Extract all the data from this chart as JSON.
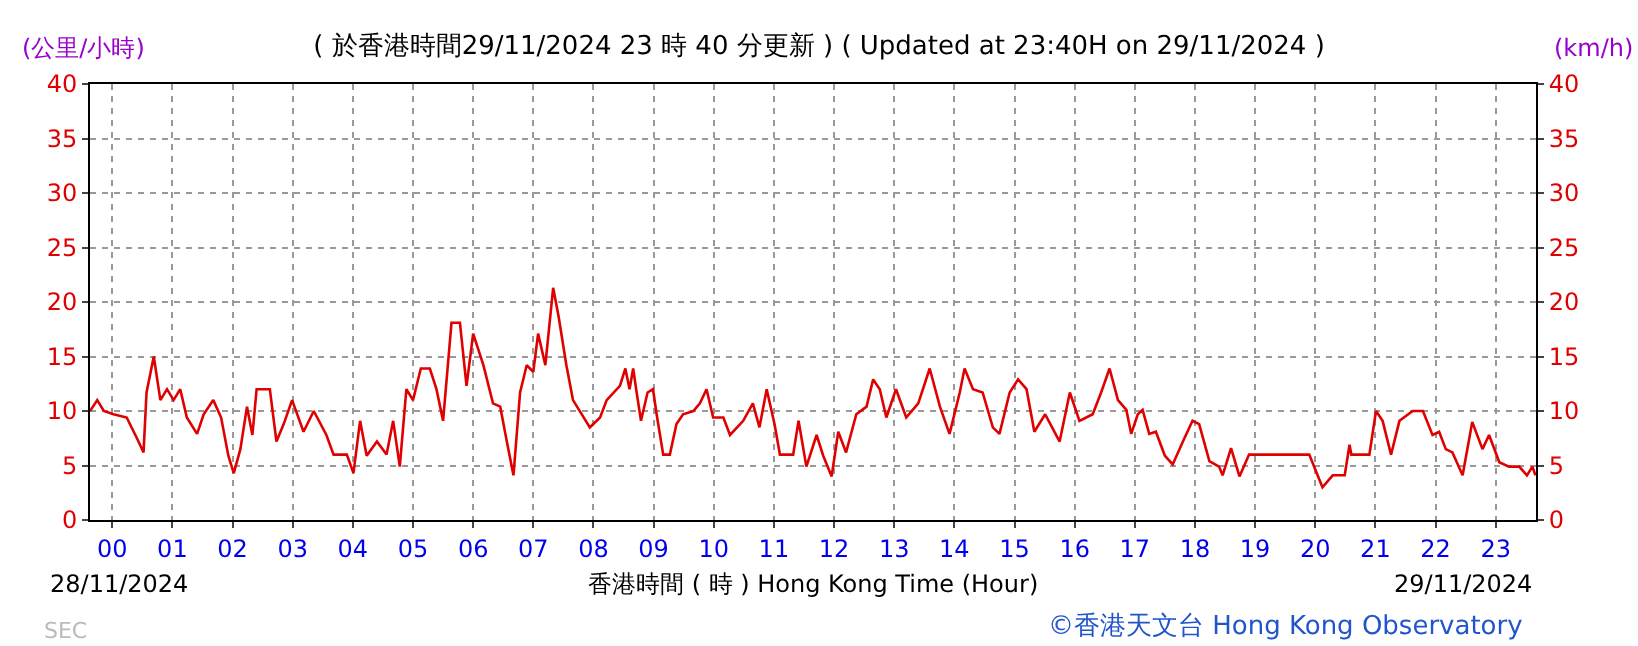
{
  "chart_data": {
    "type": "line",
    "title": "( 於香港時間29/11/2024 23 時 40 分更新 ) ( Updated at 23:40H on 29/11/2024 )",
    "xlabel": "香港時間 ( 時 ) Hong Kong Time (Hour)",
    "ylabel": "(公里/小時)",
    "y2label": "(km/h)",
    "annotations": [
      "28/11/2024",
      "29/11/2024",
      "©香港天文台 Hong Kong Observatory",
      "SEC"
    ],
    "x": [
      -0.37,
      -0.25,
      -0.14,
      0.02,
      0.24,
      0.41,
      0.52,
      0.57,
      0.69,
      0.8,
      0.91,
      1.02,
      1.13,
      1.24,
      1.41,
      1.52,
      1.68,
      1.81,
      1.93,
      2.02,
      2.13,
      2.24,
      2.33,
      2.4,
      2.62,
      2.73,
      2.85,
      2.99,
      3.18,
      3.35,
      3.56,
      3.68,
      3.9,
      4.01,
      4.12,
      4.23,
      4.4,
      4.56,
      4.67,
      4.78,
      4.89,
      5.0,
      5.13,
      5.28,
      5.39,
      5.5,
      5.64,
      5.78,
      5.89,
      6.0,
      6.17,
      6.33,
      6.45,
      6.56,
      6.67,
      6.78,
      6.89,
      7.0,
      7.08,
      7.2,
      7.33,
      7.42,
      7.55,
      7.66,
      7.94,
      8.11,
      8.22,
      8.44,
      8.53,
      8.6,
      8.66,
      8.71,
      8.79,
      8.9,
      8.99,
      9.05,
      9.16,
      9.27,
      9.38,
      9.49,
      9.66,
      9.77,
      9.88,
      9.99,
      10.16,
      10.27,
      10.49,
      10.65,
      10.76,
      10.88,
      11.01,
      11.1,
      11.32,
      11.41,
      11.54,
      11.71,
      11.82,
      11.96,
      12.07,
      12.2,
      12.37,
      12.54,
      12.65,
      12.76,
      12.87,
      13.03,
      13.2,
      13.4,
      13.59,
      13.76,
      13.92,
      14.09,
      14.17,
      14.31,
      14.47,
      14.64,
      14.75,
      14.92,
      15.06,
      15.2,
      15.33,
      15.51,
      15.75,
      15.92,
      16.08,
      16.3,
      16.44,
      16.58,
      16.72,
      16.86,
      16.94,
      17.05,
      17.13,
      17.24,
      17.35,
      17.5,
      17.63,
      17.8,
      17.96,
      18.07,
      18.24,
      18.4,
      18.46,
      18.6,
      18.74,
      18.9,
      19.4,
      19.9,
      20.12,
      20.29,
      20.49,
      20.57,
      20.6,
      20.9,
      21.01,
      21.12,
      21.26,
      21.4,
      21.62,
      21.79,
      21.95,
      22.06,
      22.17,
      22.28,
      22.45,
      22.61,
      22.78,
      22.89,
      23.06,
      23.22,
      23.39,
      23.52,
      23.61,
      23.66
    ],
    "series": [
      {
        "color": "#e00000",
        "values": [
          10,
          11,
          10,
          9.7,
          9.4,
          7.5,
          6.2,
          11.7,
          15,
          11,
          12,
          11,
          12,
          9.4,
          7.9,
          9.7,
          11,
          9.4,
          5.9,
          4.3,
          6.5,
          10.4,
          7.8,
          12,
          12,
          7.2,
          8.8,
          11,
          8.1,
          10,
          7.8,
          6,
          6,
          4.3,
          9.1,
          5.9,
          7.2,
          6,
          9.1,
          4.9,
          12,
          11,
          13.9,
          13.9,
          12,
          9.1,
          18.1,
          18.1,
          12.3,
          17.1,
          14.2,
          10.7,
          10.4,
          7.2,
          4.1,
          11.7,
          14.2,
          13.6,
          17.1,
          14.2,
          21.3,
          18.7,
          14.2,
          11,
          8.5,
          9.4,
          11,
          12.3,
          13.9,
          12,
          13.9,
          12,
          9.1,
          11.7,
          12,
          9.7,
          6,
          6,
          8.8,
          9.7,
          10,
          10.7,
          12,
          9.4,
          9.4,
          7.8,
          9.1,
          10.7,
          8.5,
          12,
          8.8,
          6,
          6,
          9.1,
          4.9,
          7.8,
          5.9,
          4,
          8.1,
          6.2,
          9.7,
          10.4,
          12.9,
          12,
          9.4,
          12,
          9.4,
          10.7,
          13.9,
          10.4,
          7.9,
          11.7,
          13.9,
          12,
          11.7,
          8.5,
          7.9,
          11.7,
          12.9,
          12,
          8.1,
          9.7,
          7.2,
          11.7,
          9.1,
          9.7,
          11.7,
          13.9,
          11,
          10.1,
          7.9,
          9.7,
          10.1,
          7.9,
          8.1,
          5.9,
          5.1,
          7.2,
          9.1,
          8.8,
          5.4,
          4.9,
          4.1,
          6.6,
          4,
          6,
          6,
          6,
          3,
          4.1,
          4.1,
          6.9,
          6,
          6,
          10,
          9.1,
          6,
          9.1,
          10,
          10,
          7.8,
          8.1,
          6.5,
          6.2,
          4.1,
          9,
          6.5,
          7.8,
          5.3,
          4.9,
          4.9,
          4.1,
          4.9,
          4.1
        ]
      }
    ],
    "xlim": [
      -0.37,
      23.67
    ],
    "xticks": [
      {
        "value": 0,
        "label": "00"
      },
      {
        "value": 1,
        "label": "01"
      },
      {
        "value": 2,
        "label": "02"
      },
      {
        "value": 3,
        "label": "03"
      },
      {
        "value": 4,
        "label": "04"
      },
      {
        "value": 5,
        "label": "05"
      },
      {
        "value": 6,
        "label": "06"
      },
      {
        "value": 7,
        "label": "07"
      },
      {
        "value": 8,
        "label": "08"
      },
      {
        "value": 9,
        "label": "09"
      },
      10,
      11,
      12,
      13,
      14,
      15,
      16,
      17,
      18,
      19,
      20,
      21,
      22,
      23
    ],
    "ylim": [
      0,
      40
    ],
    "yticks": [
      0,
      5,
      10,
      15,
      20,
      25,
      30,
      35,
      40
    ],
    "y2lim": [
      0,
      40
    ],
    "y2ticks": [
      0,
      5,
      10,
      15,
      20,
      25,
      30,
      35,
      40
    ],
    "grid": true,
    "marker": "none",
    "line_style": "solid"
  }
}
